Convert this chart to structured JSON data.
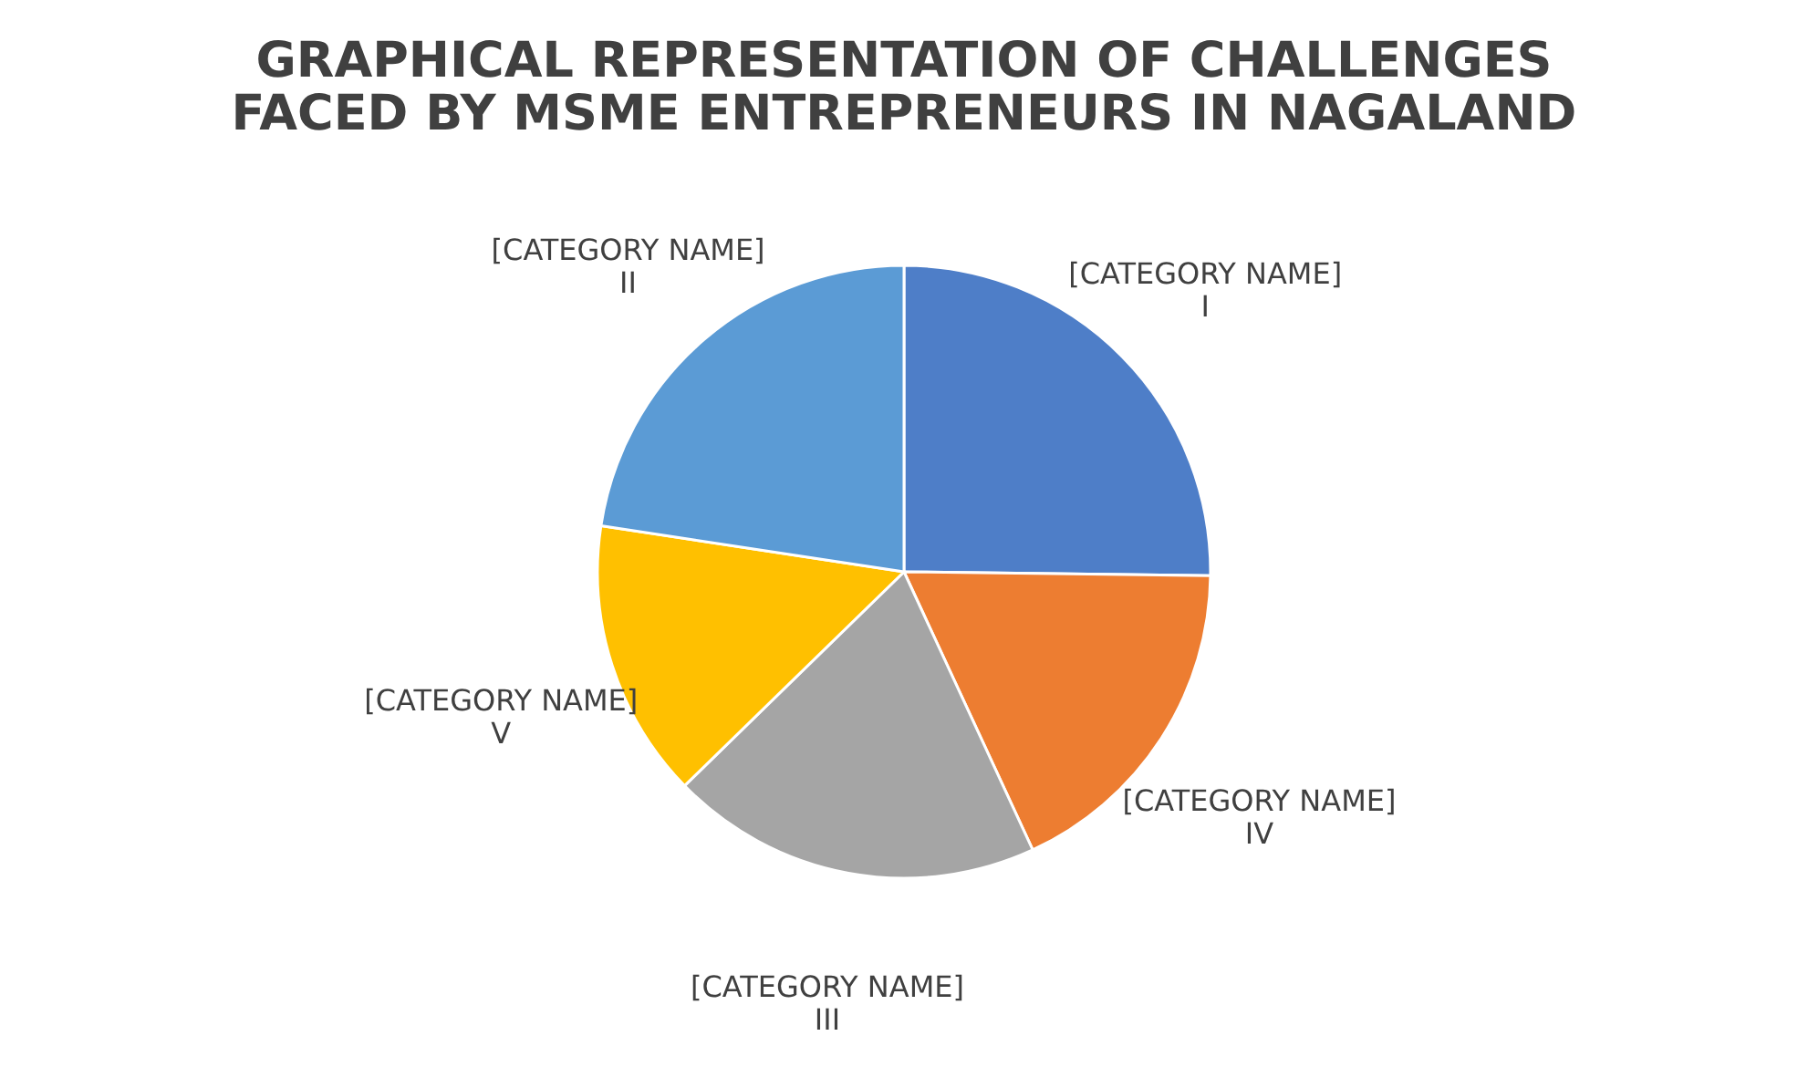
{
  "chart_data": {
    "type": "pie",
    "title": "GRAPHICAL REPRESENTATION OF CHALLENGES\nFACED BY MSME ENTREPRENEURS IN NAGALAND",
    "categories": [
      "[CATEGORY NAME]\nI",
      "[CATEGORY NAME]\nIV",
      "[CATEGORY NAME]\nIII",
      "[CATEGORY NAME]\nV",
      "[CATEGORY NAME]\nII"
    ],
    "values": [
      25.2,
      17.9,
      19.6,
      14.7,
      22.6
    ],
    "colors": [
      "#4e7ec8",
      "#ed7d31",
      "#a5a5a5",
      "#ffc000",
      "#5b9bd5"
    ],
    "legend": false
  }
}
